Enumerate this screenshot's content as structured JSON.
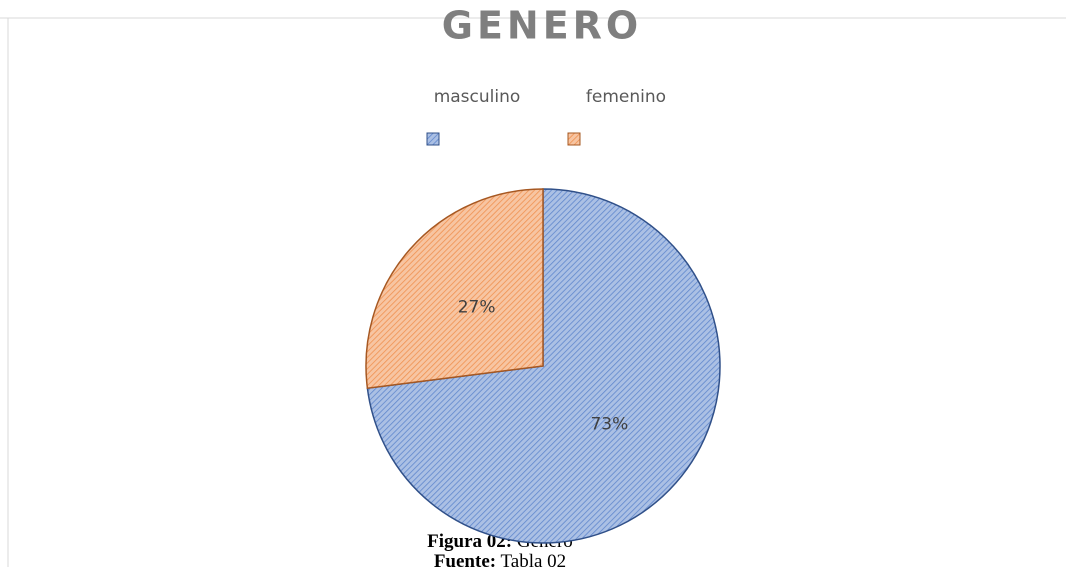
{
  "chart_data": {
    "type": "pie",
    "title": "GENERO",
    "categories": [
      "masculino",
      "femenino"
    ],
    "values": [
      73,
      27
    ],
    "value_labels": [
      "73%",
      "27%"
    ],
    "colors": [
      "#4472c4",
      "#ed7d31"
    ],
    "legend": "top"
  },
  "caption": {
    "figure_label": "Figura 02:",
    "figure_text": "Genero",
    "source_label": "Fuente:",
    "source_text": "Tabla 02"
  }
}
